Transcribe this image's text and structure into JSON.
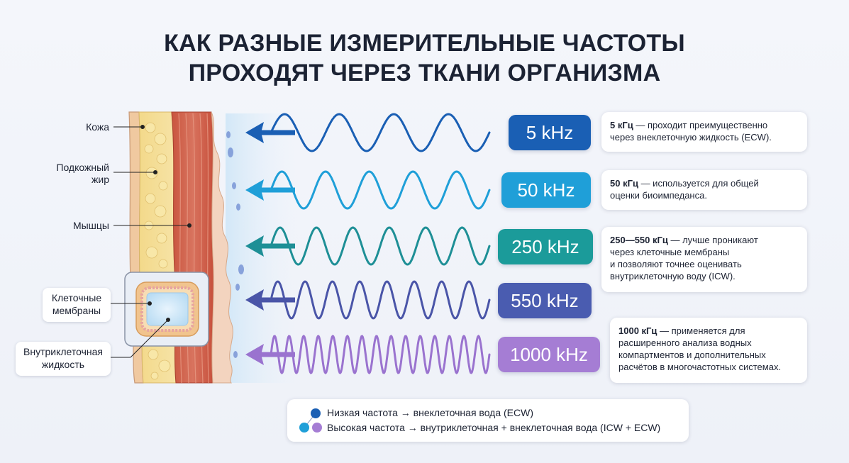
{
  "title": {
    "line1": "КАК РАЗНЫЕ ИЗМЕРИТЕЛЬНЫЕ ЧАСТОТЫ",
    "line2": "ПРОХОДЯТ ЧЕРЕЗ ТКАНИ ОРГАНИЗМА"
  },
  "tissue_labels": {
    "skin": "Кожа",
    "fat_line1": "Подкожный",
    "fat_line2": "жир",
    "muscle": "Мышцы",
    "membranes_line1": "Клеточные",
    "membranes_line2": "мембраны",
    "fluid_line1": "Внутриклеточная",
    "fluid_line2": "жидкость"
  },
  "frequencies": [
    {
      "label": "5 kHz",
      "color": "#1a5fb4",
      "wave_color": "#1a5fb4",
      "cycles": 4,
      "desc_bold": "5 кГц",
      "desc_rest": " — проходит преимущественно",
      "desc_lines": [
        "через внеклеточную жидкость (ECW)."
      ]
    },
    {
      "label": "50 kHz",
      "color": "#1f9fd8",
      "wave_color": "#1f9fd8",
      "cycles": 5,
      "desc_bold": "50 кГц",
      "desc_rest": " — используется для общей",
      "desc_lines": [
        "оценки биоимпеданса."
      ]
    },
    {
      "label": "250 kHz",
      "color": "#1b9b9a",
      "wave_color": "#1e8f96",
      "cycles": 6,
      "desc_bold": "250—550 кГц",
      "desc_rest": " — лучше проникают",
      "desc_lines": [
        "через клеточные мембраны",
        "и позволяют точнее оценивать",
        "внутриклеточную воду (ICW)."
      ]
    },
    {
      "label": "550 kHz",
      "color": "#4a5cb0",
      "wave_color": "#4a55a8",
      "cycles": 8,
      "desc_bold": "",
      "desc_rest": "",
      "desc_lines": []
    },
    {
      "label": "1000 kHz",
      "color": "#a57dd4",
      "wave_color": "#9a73cf",
      "cycles": 15,
      "desc_bold": "1000 кГц",
      "desc_rest": " — применяется для",
      "desc_lines": [
        "расширенного анализа водных",
        "компартментов и дополнительных",
        "расчётов в многочастотных системах."
      ]
    }
  ],
  "legend": {
    "low": "Низкая частота → внеклеточная вода (ECW)",
    "high": "Высокая частота → внутриклеточная + внеклеточная вода (ICW + ECW)",
    "low_color": "#1a5fb4",
    "high_color": "#a57dd4",
    "high_dot2_color": "#1f9fd8"
  }
}
